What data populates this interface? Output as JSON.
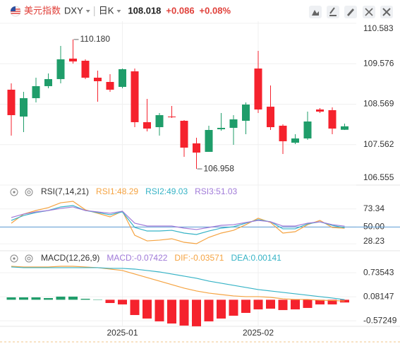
{
  "header": {
    "symbol_name": "美元指数",
    "symbol": "DXY",
    "period": "日K",
    "price": "108.018",
    "change": "+0.086",
    "change_pct": "+0.08%"
  },
  "chart_data": [
    {
      "type": "candlestick",
      "categories": [
        null,
        null,
        null,
        null,
        null,
        null,
        null,
        null,
        null,
        "2025-01",
        null,
        null,
        null,
        null,
        null,
        null,
        null,
        null,
        null,
        null,
        "2025-02",
        null,
        null,
        null,
        null,
        null,
        null,
        null
      ],
      "open": [
        108.93,
        108.261,
        108.719,
        109.018,
        109.194,
        109.704,
        109.651,
        109.229,
        109.123,
        109.0,
        109.387,
        108.121,
        107.997,
        108.261,
        108.156,
        107.593,
        107.382,
        107.945,
        107.98,
        108.156,
        109.457,
        108.507,
        108.033,
        107.61,
        107.716,
        108.437,
        108.42,
        107.932
      ],
      "high": [
        109.088,
        108.877,
        109.229,
        109.334,
        110.02,
        110.18,
        109.686,
        109.405,
        109.317,
        109.457,
        109.457,
        108.701,
        108.349,
        108.525,
        108.173,
        107.734,
        108.033,
        108.349,
        108.296,
        108.613,
        109.897,
        109.035,
        108.068,
        107.821,
        108.384,
        108.472,
        108.49,
        108.085
      ],
      "low": [
        107.786,
        107.874,
        108.613,
        108.965,
        109.088,
        109.58,
        109.194,
        108.631,
        108.877,
        108.965,
        107.997,
        107.892,
        107.786,
        108.226,
        107.259,
        106.958,
        107.382,
        107.909,
        107.558,
        107.821,
        108.349,
        107.927,
        107.329,
        107.575,
        107.681,
        108.349,
        107.821,
        107.927
      ],
      "close": [
        108.296,
        108.719,
        109.018,
        109.194,
        109.686,
        109.633,
        109.229,
        109.141,
        108.93,
        109.44,
        108.121,
        107.962,
        108.296,
        108.244,
        107.487,
        107.364,
        107.927,
        107.98,
        108.191,
        108.56,
        108.437,
        107.997,
        107.646,
        107.716,
        108.138,
        108.384,
        107.962,
        108.018
      ],
      "up_color": "#1f9d6a",
      "down_color": "#f5222d",
      "ylim": [
        106.555,
        110.583
      ],
      "yticks": [
        110.583,
        109.576,
        108.569,
        107.562,
        106.555
      ],
      "grid": true,
      "annotations": [
        {
          "label": "110.180",
          "value": 110.18
        },
        {
          "label": "106.958",
          "value": 106.958
        }
      ]
    },
    {
      "type": "line",
      "title": "RSI(7,14,21)",
      "series": [
        {
          "name": "RSI1:48.29",
          "color": "#f5a341",
          "values": [
            54.9,
            66.7,
            71.3,
            75.0,
            81.3,
            83.2,
            72.2,
            67.7,
            63.1,
            70.4,
            39.3,
            32.0,
            33.0,
            34.8,
            30.2,
            28.4,
            36.6,
            42.1,
            45.7,
            53.0,
            61.3,
            55.8,
            42.1,
            43.9,
            53.0,
            58.5,
            49.4,
            48.29
          ]
        },
        {
          "name": "RSI2:49.03",
          "color": "#36b3c6",
          "values": [
            58.5,
            64.9,
            68.6,
            71.3,
            75.9,
            77.7,
            71.3,
            68.6,
            65.8,
            69.5,
            49.4,
            44.8,
            44.8,
            45.7,
            42.1,
            40.3,
            44.8,
            48.5,
            50.3,
            54.9,
            59.4,
            56.7,
            47.6,
            47.6,
            54.0,
            56.7,
            52.1,
            49.03
          ]
        },
        {
          "name": "RSI3:51.03",
          "color": "#a07ad8",
          "values": [
            62.2,
            66.7,
            69.5,
            71.3,
            74.0,
            75.9,
            71.3,
            69.5,
            67.7,
            70.4,
            54.9,
            51.2,
            51.2,
            51.2,
            48.5,
            46.7,
            49.4,
            52.1,
            53.0,
            55.8,
            58.5,
            56.7,
            51.2,
            51.2,
            54.9,
            56.7,
            53.0,
            51.03
          ]
        }
      ],
      "ylim": [
        22,
        85
      ],
      "yticks": [
        73.34,
        {
          "value": 50,
          "label": "50.00"
        },
        28.23
      ],
      "reference_line": {
        "value": 50,
        "color": "#5b9bd5"
      }
    },
    {
      "type": "macd",
      "title": "MACD(12,26,9)",
      "series": [
        {
          "name": "MACD:-0.07422",
          "type": "bar",
          "color": "#a07ad8",
          "up_color": "#1f9d6a",
          "down_color": "#f5222d",
          "values": [
            0.065,
            0.065,
            0.065,
            0.046,
            0.085,
            0.085,
            0.027,
            0.008,
            -0.089,
            -0.127,
            -0.416,
            -0.512,
            -0.589,
            -0.647,
            -0.704,
            -0.723,
            -0.589,
            -0.512,
            -0.435,
            -0.358,
            -0.262,
            -0.243,
            -0.281,
            -0.262,
            -0.223,
            -0.127,
            -0.127,
            -0.07422
          ]
        },
        {
          "name": "DIF:-0.03571",
          "type": "line",
          "color": "#f5a341",
          "values": [
            0.912,
            0.893,
            0.893,
            0.893,
            0.912,
            0.912,
            0.893,
            0.874,
            0.835,
            0.797,
            0.701,
            0.604,
            0.508,
            0.412,
            0.316,
            0.239,
            0.181,
            0.142,
            0.104,
            0.085,
            0.085,
            0.065,
            0.027,
            0.008,
            0.008,
            -0.012,
            -0.021,
            -0.03571
          ]
        },
        {
          "name": "DEA:0.00141",
          "type": "line",
          "color": "#36b3c6",
          "values": [
            0.893,
            0.874,
            0.874,
            0.874,
            0.874,
            0.874,
            0.874,
            0.874,
            0.855,
            0.855,
            0.835,
            0.797,
            0.758,
            0.701,
            0.643,
            0.585,
            0.508,
            0.45,
            0.393,
            0.335,
            0.277,
            0.239,
            0.2,
            0.162,
            0.123,
            0.085,
            0.046,
            0.00141
          ]
        }
      ],
      "ylim": [
        -0.84,
        1.2
      ],
      "yticks": [
        0.73543,
        0.08147,
        -0.57249
      ]
    }
  ]
}
